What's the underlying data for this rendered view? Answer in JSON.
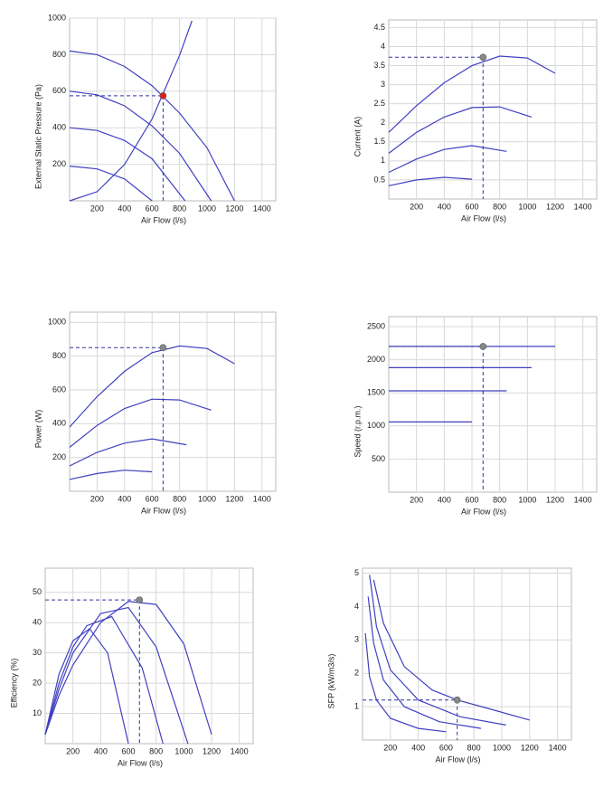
{
  "chart_data": [
    {
      "type": "line",
      "x_label": "Air Flow (l/s)",
      "y_label": "External Static Pressure (Pa)",
      "xlim": [
        0,
        1500
      ],
      "ylim": [
        0,
        1000
      ],
      "xticks": [
        200,
        400,
        600,
        800,
        1000,
        1200,
        1400
      ],
      "yticks": [
        200,
        400,
        600,
        800,
        1000
      ],
      "grid": true,
      "color": "#4040c0",
      "point": {
        "x": 680,
        "y": 575,
        "color": "#e0201b"
      },
      "series": [
        {
          "x": [
            0,
            200,
            400,
            600,
            800,
            1000,
            1200
          ],
          "values": [
            820,
            800,
            735,
            630,
            480,
            290,
            0
          ]
        },
        {
          "x": [
            0,
            200,
            400,
            600,
            800,
            1030
          ],
          "values": [
            600,
            580,
            520,
            410,
            260,
            0
          ]
        },
        {
          "x": [
            0,
            200,
            400,
            600,
            840
          ],
          "values": [
            400,
            385,
            330,
            230,
            0
          ]
        },
        {
          "x": [
            0,
            200,
            400,
            600
          ],
          "values": [
            190,
            175,
            120,
            0
          ]
        },
        {
          "x": [
            0,
            200,
            400,
            600,
            800,
            890
          ],
          "values": [
            0,
            50,
            199,
            448,
            796,
            985
          ]
        }
      ]
    },
    {
      "type": "line",
      "x_label": "Air Flow (l/s)",
      "y_label": "Current (A)",
      "xlim": [
        0,
        1500
      ],
      "ylim": [
        0,
        4.7
      ],
      "xticks": [
        200,
        400,
        600,
        800,
        1000,
        1200,
        1400
      ],
      "yticks": [
        0.5,
        1,
        1.5,
        2,
        2.5,
        3,
        3.5,
        4,
        4.5
      ],
      "grid": true,
      "color": "#4040c0",
      "point": {
        "x": 680,
        "y": 3.72,
        "color": "#888888"
      },
      "series": [
        {
          "x": [
            0,
            200,
            400,
            600,
            800,
            1000,
            1200
          ],
          "values": [
            1.75,
            2.45,
            3.05,
            3.5,
            3.75,
            3.7,
            3.3
          ]
        },
        {
          "x": [
            0,
            200,
            400,
            600,
            800,
            1030
          ],
          "values": [
            1.2,
            1.75,
            2.15,
            2.4,
            2.42,
            2.15
          ]
        },
        {
          "x": [
            0,
            200,
            400,
            600,
            850
          ],
          "values": [
            0.7,
            1.05,
            1.3,
            1.4,
            1.25
          ]
        },
        {
          "x": [
            0,
            200,
            400,
            600
          ],
          "values": [
            0.35,
            0.5,
            0.57,
            0.52
          ]
        }
      ]
    },
    {
      "type": "line",
      "x_label": "Air Flow (l/s)",
      "y_label": "Power (W)",
      "xlim": [
        0,
        1500
      ],
      "ylim": [
        0,
        1060
      ],
      "xticks": [
        200,
        400,
        600,
        800,
        1000,
        1200,
        1400
      ],
      "yticks": [
        200,
        400,
        600,
        800,
        1000
      ],
      "grid": true,
      "color": "#4040c0",
      "point": {
        "x": 680,
        "y": 850,
        "color": "#888888"
      },
      "series": [
        {
          "x": [
            0,
            200,
            400,
            600,
            800,
            1000,
            1200
          ],
          "values": [
            380,
            560,
            710,
            820,
            860,
            845,
            755
          ]
        },
        {
          "x": [
            0,
            200,
            400,
            600,
            800,
            1030
          ],
          "values": [
            260,
            390,
            490,
            545,
            540,
            480
          ]
        },
        {
          "x": [
            0,
            200,
            400,
            600,
            850
          ],
          "values": [
            150,
            230,
            285,
            310,
            275
          ]
        },
        {
          "x": [
            0,
            200,
            400,
            600
          ],
          "values": [
            70,
            105,
            125,
            115
          ]
        }
      ]
    },
    {
      "type": "line",
      "x_label": "Air Flow (l/s)",
      "y_label": "Speed (r.p.m.)",
      "xlim": [
        0,
        1500
      ],
      "ylim": [
        0,
        2650
      ],
      "xticks": [
        200,
        400,
        600,
        800,
        1000,
        1200,
        1400
      ],
      "yticks": [
        500,
        1000,
        1500,
        2000,
        2500
      ],
      "grid": true,
      "color": "#4040c0",
      "point": {
        "x": 680,
        "y": 2200,
        "color": "#888888"
      },
      "series": [
        {
          "x": [
            0,
            1200
          ],
          "values": [
            2200,
            2200
          ]
        },
        {
          "x": [
            0,
            1030
          ],
          "values": [
            1880,
            1880
          ]
        },
        {
          "x": [
            0,
            850
          ],
          "values": [
            1530,
            1530
          ]
        },
        {
          "x": [
            0,
            600
          ],
          "values": [
            1060,
            1060
          ]
        }
      ]
    },
    {
      "type": "line",
      "x_label": "Air Flow (l/s)",
      "y_label": "Efficiency (%)",
      "xlim": [
        0,
        1500
      ],
      "ylim": [
        0,
        58
      ],
      "xticks": [
        200,
        400,
        600,
        800,
        1000,
        1200,
        1400
      ],
      "yticks": [
        10,
        20,
        30,
        40,
        50
      ],
      "grid": true,
      "color": "#4040c0",
      "point": {
        "x": 680,
        "y": 47.5,
        "color": "#888888"
      },
      "series": [
        {
          "x": [
            0,
            100,
            200,
            400,
            600,
            800,
            1000,
            1200
          ],
          "values": [
            3,
            16,
            26,
            40,
            47,
            46,
            33,
            3
          ]
        },
        {
          "x": [
            0,
            100,
            200,
            400,
            600,
            800,
            1030
          ],
          "values": [
            3,
            18,
            30,
            43,
            45,
            32,
            0
          ]
        },
        {
          "x": [
            0,
            100,
            200,
            300,
            480,
            700,
            850
          ],
          "values": [
            3,
            20,
            32,
            39,
            42,
            25,
            0
          ]
        },
        {
          "x": [
            0,
            100,
            200,
            320,
            450,
            600
          ],
          "values": [
            3,
            23,
            34,
            38,
            30,
            0
          ]
        }
      ]
    },
    {
      "type": "line",
      "x_label": "Air Flow (l/s)",
      "y_label": "SFP (kW/m3/s)",
      "xlim": [
        0,
        1500
      ],
      "ylim": [
        0,
        5.15
      ],
      "xticks": [
        200,
        400,
        600,
        800,
        1000,
        1200,
        1400
      ],
      "yticks": [
        1,
        2,
        3,
        4,
        5
      ],
      "grid": true,
      "color": "#4040c0",
      "point": {
        "x": 680,
        "y": 1.2,
        "color": "#888888"
      },
      "series": [
        {
          "x": [
            80,
            150,
            300,
            500,
            680,
            900,
            1200
          ],
          "values": [
            4.8,
            3.5,
            2.2,
            1.5,
            1.2,
            0.95,
            0.6
          ]
        },
        {
          "x": [
            50,
            100,
            200,
            400,
            700,
            1030
          ],
          "values": [
            4.95,
            3.4,
            2.1,
            1.2,
            0.7,
            0.45
          ]
        },
        {
          "x": [
            40,
            80,
            150,
            300,
            550,
            850
          ],
          "values": [
            4.3,
            2.9,
            1.8,
            1.0,
            0.55,
            0.35
          ]
        },
        {
          "x": [
            20,
            50,
            100,
            200,
            400,
            600
          ],
          "values": [
            3.2,
            1.9,
            1.2,
            0.65,
            0.35,
            0.25
          ]
        }
      ]
    }
  ]
}
